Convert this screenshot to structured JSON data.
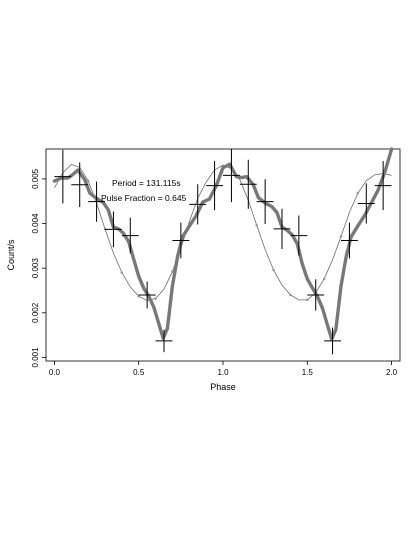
{
  "chart_data": {
    "type": "line",
    "xlabel": "Phase",
    "ylabel": "Count/s",
    "xlim": [
      -0.05,
      2.05
    ],
    "ylim": [
      0.00092,
      0.00567
    ],
    "x_ticks": [
      0.0,
      0.5,
      1.0,
      1.5,
      2.0
    ],
    "x_tick_labels": [
      "0.0",
      "0.5",
      "1.0",
      "1.5",
      "2.0"
    ],
    "y_ticks": [
      0.001,
      0.002,
      0.003,
      0.004,
      0.005
    ],
    "y_tick_labels": [
      "0.001",
      "0.002",
      "0.003",
      "0.004",
      "0.005"
    ],
    "grid": false,
    "annotations": [
      "Period = 131.115s",
      "Pulse Fraction = 0.645"
    ],
    "series": [
      {
        "kind": "errorbar",
        "x": [
          0.05,
          0.15,
          0.25,
          0.35,
          0.45,
          0.55,
          0.65,
          0.75,
          0.85,
          0.95,
          1.05,
          1.15,
          1.25,
          1.35,
          1.45,
          1.55,
          1.65,
          1.75,
          1.85,
          1.95
        ],
        "y": [
          0.00505,
          0.00487,
          0.00449,
          0.00387,
          0.00373,
          0.0024,
          0.00137,
          0.00362,
          0.00443,
          0.00485,
          0.00508,
          0.00488,
          0.00449,
          0.00388,
          0.00373,
          0.0024,
          0.00137,
          0.00362,
          0.00445,
          0.00485
        ],
        "yerr": [
          0.0006,
          0.0005,
          0.00045,
          0.0004,
          0.0004,
          0.0003,
          0.00025,
          0.0004,
          0.00045,
          0.00055,
          0.0006,
          0.00055,
          0.0005,
          0.00045,
          0.00045,
          0.00035,
          0.0003,
          0.0004,
          0.00045,
          0.00055
        ],
        "xerr": 0.05,
        "color": "#000000"
      },
      {
        "kind": "smooth-line",
        "x": [
          0.0,
          0.04,
          0.08,
          0.11,
          0.14,
          0.18,
          0.21,
          0.25,
          0.29,
          0.32,
          0.35,
          0.38,
          0.41,
          0.44,
          0.47,
          0.5,
          0.53,
          0.56,
          0.59,
          0.62,
          0.645,
          0.67,
          0.7,
          0.73,
          0.76,
          0.8,
          0.84,
          0.88,
          0.92,
          0.96,
          1.0,
          1.04,
          1.08,
          1.11,
          1.14,
          1.18,
          1.21,
          1.25,
          1.29,
          1.32,
          1.35,
          1.38,
          1.41,
          1.44,
          1.47,
          1.5,
          1.53,
          1.56,
          1.59,
          1.62,
          1.645,
          1.67,
          1.7,
          1.73,
          1.76,
          1.8,
          1.84,
          1.88,
          1.92,
          1.96,
          2.0
        ],
        "y": [
          0.00495,
          0.00502,
          0.00502,
          0.0051,
          0.0052,
          0.00498,
          0.00468,
          0.00456,
          0.00447,
          0.0043,
          0.00392,
          0.00388,
          0.00378,
          0.0036,
          0.0032,
          0.00282,
          0.00255,
          0.00237,
          0.00212,
          0.00175,
          0.00143,
          0.00165,
          0.0026,
          0.00325,
          0.0037,
          0.00394,
          0.00417,
          0.00448,
          0.00455,
          0.00485,
          0.00525,
          0.00533,
          0.00505,
          0.00503,
          0.00505,
          0.00487,
          0.00458,
          0.00446,
          0.00438,
          0.00425,
          0.00392,
          0.00385,
          0.00375,
          0.00355,
          0.0031,
          0.00276,
          0.00256,
          0.00237,
          0.0021,
          0.00172,
          0.00141,
          0.00163,
          0.0026,
          0.00325,
          0.0037,
          0.00395,
          0.00418,
          0.00446,
          0.00475,
          0.00515,
          0.00578
        ],
        "color": "#787878"
      },
      {
        "kind": "model-curve",
        "x": [
          0.0,
          0.05,
          0.1,
          0.15,
          0.2,
          0.25,
          0.3,
          0.35,
          0.4,
          0.45,
          0.5,
          0.55,
          0.6,
          0.65,
          0.7,
          0.75,
          0.8,
          0.85,
          0.9,
          0.95,
          1.0,
          1.05,
          1.1,
          1.15,
          1.2,
          1.25,
          1.3,
          1.35,
          1.4,
          1.45,
          1.5,
          1.55,
          1.6,
          1.65,
          1.7,
          1.75,
          1.8,
          1.85,
          1.9,
          1.95,
          2.0
        ],
        "y": [
          0.0048,
          0.00514,
          0.00532,
          0.00526,
          0.00496,
          0.00446,
          0.00388,
          0.00334,
          0.0029,
          0.00258,
          0.00237,
          0.00228,
          0.00232,
          0.00253,
          0.00292,
          0.00345,
          0.00404,
          0.00456,
          0.00493,
          0.0052,
          0.00531,
          0.00523,
          0.00498,
          0.00452,
          0.00396,
          0.00342,
          0.00296,
          0.00262,
          0.0024,
          0.00229,
          0.00229,
          0.00245,
          0.00276,
          0.00319,
          0.00371,
          0.00425,
          0.00468,
          0.00496,
          0.00509,
          0.00512,
          0.00508
        ],
        "marker_x": [
          0.2,
          0.3,
          0.4,
          0.5,
          0.6,
          0.7,
          1.2,
          1.3,
          1.4,
          1.5,
          1.6,
          1.7,
          1.8
        ],
        "marker_y": [
          0.00496,
          0.00388,
          0.0029,
          0.00237,
          0.00232,
          0.00292,
          0.00396,
          0.00296,
          0.0024,
          0.00229,
          0.00276,
          0.00371,
          0.00468
        ],
        "color": "#6e6e6e"
      }
    ]
  }
}
